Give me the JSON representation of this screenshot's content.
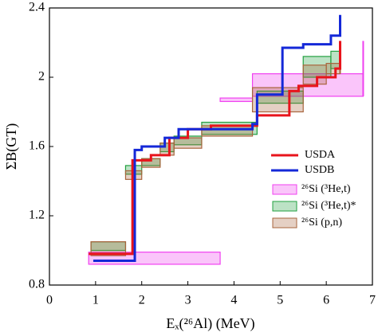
{
  "chart_data": {
    "type": "step",
    "x_label": "Eₓ(²⁶Al) (MeV)",
    "y_label": "ΣB(GT)",
    "xlim": [
      0,
      7
    ],
    "xticks": [
      0,
      1,
      2,
      3,
      4,
      5,
      6,
      7
    ],
    "ylim": [
      0.8,
      2.4
    ],
    "yticks": [
      0.8,
      1.2,
      1.6,
      2,
      2.4
    ],
    "series": [
      {
        "name": "USDA",
        "color": "#e8141c",
        "x": [
          0.85,
          1.8,
          2.2,
          2.6,
          3.0,
          3.5,
          4.5,
          5.2,
          5.4,
          5.8,
          6.2,
          6.3
        ],
        "values": [
          0.98,
          1.52,
          1.55,
          1.65,
          1.7,
          1.72,
          1.78,
          1.92,
          1.95,
          2.0,
          2.05,
          2.21
        ]
      },
      {
        "name": "USDB",
        "color": "#1428d8",
        "x": [
          0.95,
          1.85,
          2.0,
          2.5,
          2.8,
          4.4,
          4.5,
          5.05,
          5.5,
          6.1,
          6.3
        ],
        "values": [
          0.94,
          1.58,
          1.6,
          1.65,
          1.7,
          1.73,
          1.9,
          2.17,
          2.19,
          2.24,
          2.36
        ]
      }
    ],
    "bands": [
      {
        "name": "²⁶Si (³He,t)",
        "color": "#f040f0",
        "x": [
          0.85,
          3.7,
          4.4,
          6.8
        ],
        "low": [
          0.92,
          1.86,
          1.89,
          1.89
        ],
        "high": [
          0.99,
          1.88,
          2.02,
          2.21
        ]
      },
      {
        "name": "²⁶Si (³He,t)*",
        "color": "#22a040",
        "x": [
          0.9,
          1.65,
          2.0,
          2.4,
          2.7,
          3.3,
          4.5,
          5.5,
          6.1,
          6.3
        ],
        "low": [
          1.0,
          1.44,
          1.49,
          1.57,
          1.61,
          1.67,
          1.85,
          2.0,
          2.05,
          2.05
        ],
        "high": [
          1.05,
          1.49,
          1.53,
          1.62,
          1.66,
          1.74,
          1.92,
          2.12,
          2.15,
          2.18
        ]
      },
      {
        "name": "²⁶Si (p,n)",
        "color": "#a8643c",
        "x": [
          0.9,
          1.65,
          2.0,
          2.4,
          2.7,
          3.3,
          4.4,
          5.5,
          6.0,
          6.3
        ],
        "low": [
          0.97,
          1.41,
          1.48,
          1.55,
          1.59,
          1.66,
          1.8,
          1.96,
          2.02,
          2.02
        ],
        "high": [
          1.05,
          1.46,
          1.53,
          1.62,
          1.65,
          1.72,
          1.94,
          2.07,
          2.08,
          2.13
        ]
      }
    ]
  }
}
